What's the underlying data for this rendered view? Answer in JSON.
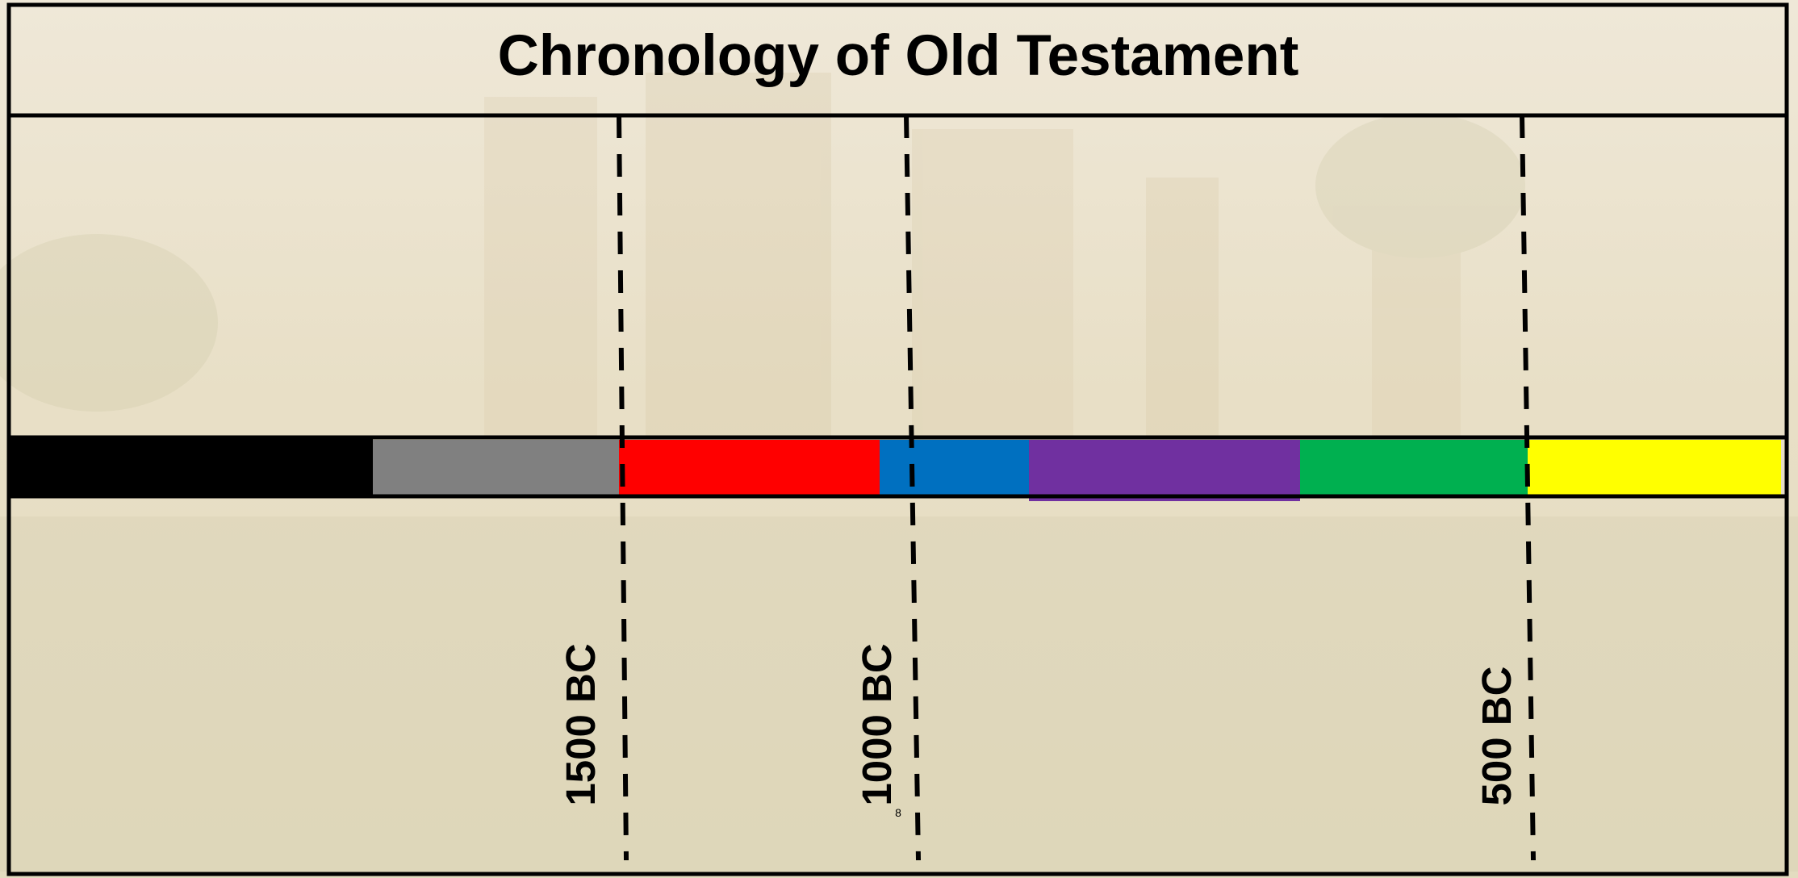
{
  "title": "Chronology of Old Testament",
  "markers": [
    {
      "label": "1500 BC"
    },
    {
      "label": "1000 BC"
    },
    {
      "label": "500 BC"
    }
  ],
  "slide_number": "8"
}
